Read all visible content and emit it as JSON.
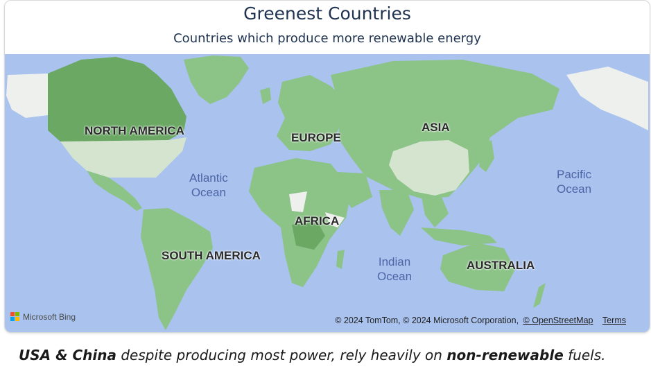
{
  "header": {
    "title": "Greenest Countries",
    "subtitle": "Countries which produce more renewable energy"
  },
  "map": {
    "continent_labels": {
      "north_america": "NORTH AMERICA",
      "europe": "EUROPE",
      "asia": "ASIA",
      "africa": "AFRICA",
      "south_america": "SOUTH AMERICA",
      "australia": "AUSTRALIA"
    },
    "ocean_labels": {
      "atlantic": "Atlantic\nOcean",
      "pacific": "Pacific\nOcean",
      "indian": "Indian\nOcean"
    },
    "colors": {
      "water": "#a9c2ee",
      "renewable_land": "#8cc387",
      "high_renewable_land": "#6aa864",
      "non_renewable_land": "#d4e4cf",
      "no_data_land": "#eef0ee"
    },
    "highlighted_non_renewable": [
      "USA",
      "China"
    ]
  },
  "footer": {
    "bing_logo_text": "Microsoft Bing",
    "attribution_text": "© 2024 TomTom, © 2024 Microsoft Corporation,",
    "osm_link": "© OpenStreetMap",
    "terms_link": "Terms"
  },
  "caption": {
    "part1_bold": "USA & China",
    "part2": " despite producing most power, rely heavily on ",
    "part3_bold": "non-renewable",
    "part4": " fuels."
  }
}
